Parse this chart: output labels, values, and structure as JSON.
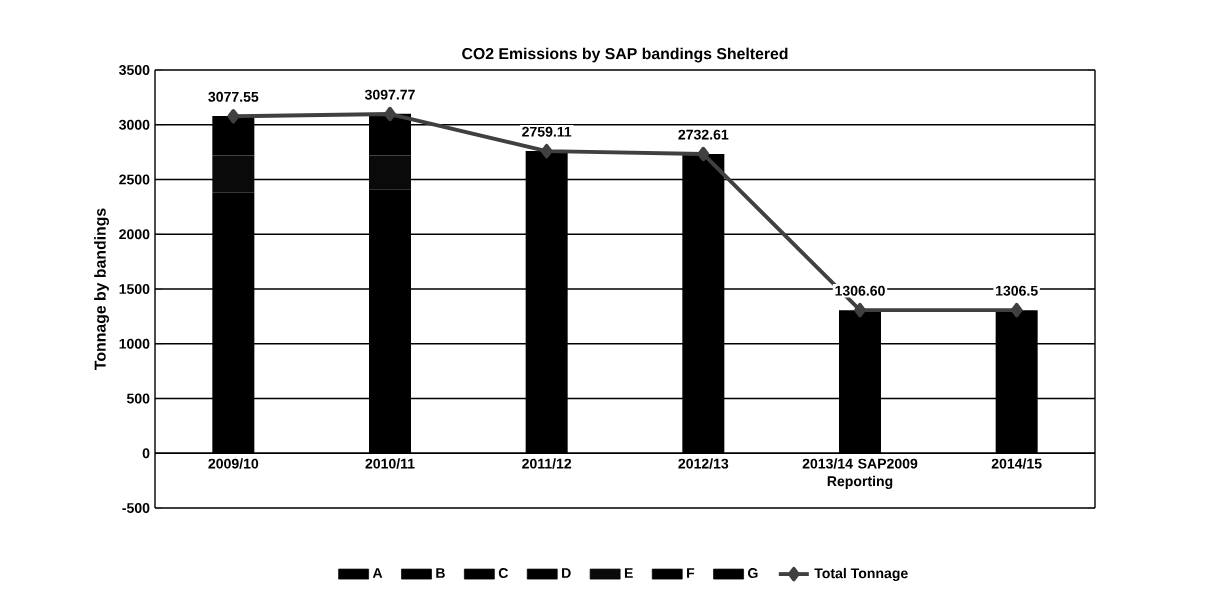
{
  "chart_data": {
    "type": "bar",
    "stacked": true,
    "title": "CO2 Emissions by SAP bandings Sheltered",
    "ylabel": "Tonnage by bandings",
    "categories": [
      "2009/10",
      "2010/11",
      "2011/12",
      "2012/13",
      "2013/14 SAP2009 Reporting",
      "2014/15"
    ],
    "series": [
      {
        "name": "A",
        "color": "#000000",
        "values": [
          0,
          0,
          0,
          0,
          0,
          0
        ]
      },
      {
        "name": "B",
        "color": "#000000",
        "values": [
          0,
          0,
          0,
          0,
          0,
          0
        ]
      },
      {
        "name": "C",
        "color": "#000000",
        "values": [
          0,
          0,
          0,
          0,
          0,
          0
        ]
      },
      {
        "name": "D",
        "color": "#000000",
        "values": [
          2380,
          2410,
          2759.11,
          2732.61,
          1306.6,
          1306.5
        ]
      },
      {
        "name": "E",
        "color": "#0a0a0a",
        "values": [
          340,
          310,
          0,
          0,
          0,
          0
        ]
      },
      {
        "name": "F",
        "color": "#000000",
        "values": [
          360,
          380,
          0,
          0,
          0,
          0
        ]
      },
      {
        "name": "G",
        "color": "#000000",
        "values": [
          0,
          0,
          0,
          0,
          0,
          0
        ]
      },
      {
        "name": "Total Tonnage",
        "type": "line",
        "color": "#404040",
        "marker": "diamond",
        "values": [
          3077.55,
          3097.77,
          2759.11,
          2732.61,
          1306.6,
          1306.5
        ],
        "value_labels": [
          "3077.55",
          "3097.77",
          "2759.11",
          "2732.61",
          "1306.60",
          "1306.5"
        ]
      }
    ],
    "ylim": [
      -500,
      3500
    ],
    "yticks": [
      -500,
      0,
      500,
      1000,
      1500,
      2000,
      2500,
      3000,
      3500
    ],
    "grid": "y",
    "legend": "bottom"
  }
}
